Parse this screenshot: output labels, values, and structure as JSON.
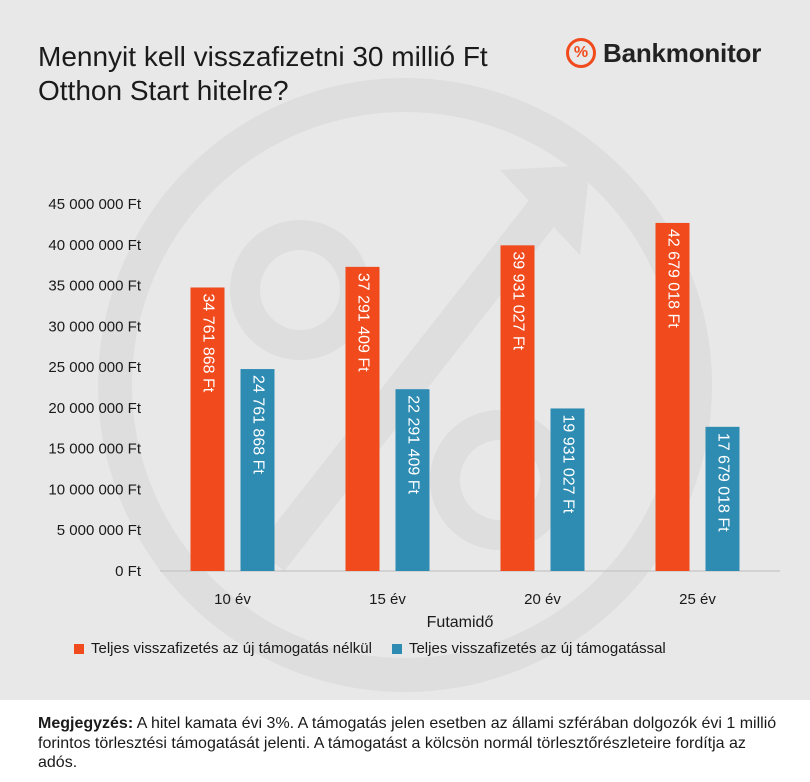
{
  "title": {
    "line1": "Mennyit kell visszafizetni 30 millió Ft",
    "line2": "Otthon Start hitelre?"
  },
  "brand": {
    "symbol": "%",
    "name": "Bankmonitor"
  },
  "chart_data": {
    "type": "bar",
    "categories": [
      "10 év",
      "15 év",
      "20 év",
      "25 év"
    ],
    "xlabel": "Futamidő",
    "ylabel": "",
    "ylim": [
      0,
      45000000
    ],
    "yticks": [
      0,
      5000000,
      10000000,
      15000000,
      20000000,
      25000000,
      30000000,
      35000000,
      40000000,
      45000000
    ],
    "ytick_labels": [
      "0 Ft",
      "5 000 000 Ft",
      "10 000 000 Ft",
      "15 000 000 Ft",
      "20 000 000 Ft",
      "25 000 000 Ft",
      "30 000 000 Ft",
      "35 000 000 Ft",
      "40 000 000 Ft",
      "45 000 000 Ft"
    ],
    "grid": false,
    "legend_position": "bottom",
    "series": [
      {
        "name": "Teljes visszafizetés az új támogatás nélkül",
        "color": "#f04a1d",
        "values": [
          34761868,
          37291409,
          39931027,
          42679018
        ],
        "labels": [
          "34 761 868 Ft",
          "37 291 409 Ft",
          "39 931 027 Ft",
          "42 679 018 Ft"
        ]
      },
      {
        "name": "Teljes visszafizetés az új támogatással",
        "color": "#2e8cb3",
        "values": [
          24761868,
          22291409,
          19931027,
          17679018
        ],
        "labels": [
          "24 761 868 Ft",
          "22 291 409 Ft",
          "19 931 027 Ft",
          "17 679 018 Ft"
        ]
      }
    ]
  },
  "note": {
    "label": "Megjegyzés:",
    "text": " A hitel kamata évi 3%. A támogatás jelen esetben az állami szférában dolgozók évi 1 millió forintos törlesztési támogatását jelenti. A támogatást a kölcsön normál törlesztőrészleteire fordítja az adós."
  }
}
